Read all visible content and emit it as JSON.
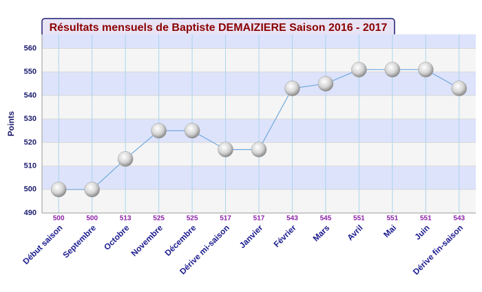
{
  "chart_data": {
    "type": "line",
    "title": "Résultats mensuels de Baptiste DEMAIZIERE Saison 2016 - 2017",
    "y_label": "Points",
    "categories": [
      "Début saison",
      "Septembre",
      "Octobre",
      "Novembre",
      "Décembre",
      "Dérive mi-saison",
      "Janvier",
      "Février",
      "Mars",
      "Avril",
      "Mai",
      "Juin",
      "Dérive fin-saison"
    ],
    "values": [
      500,
      500,
      513,
      525,
      525,
      517,
      517,
      543,
      545,
      551,
      551,
      551,
      543
    ],
    "color": "#6fa8dc",
    "ylim": [
      490,
      566
    ],
    "yticks": [
      490,
      500,
      510,
      520,
      530,
      540,
      550,
      560
    ],
    "grid": true
  }
}
